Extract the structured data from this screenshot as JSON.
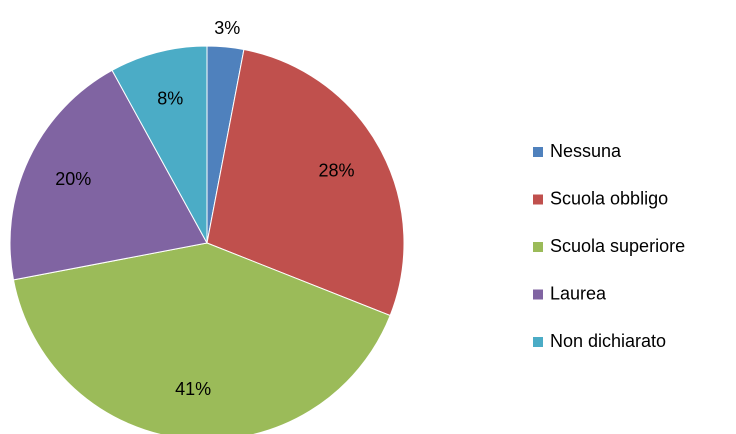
{
  "chart_data": {
    "type": "pie",
    "categories": [
      "Nessuna",
      "Scuola obbligo",
      "Scuola superiore",
      "Laurea",
      "Non dichiarato"
    ],
    "values": [
      3,
      28,
      41,
      20,
      8
    ],
    "value_labels": [
      "3%",
      "28%",
      "41%",
      "20%",
      "8%"
    ],
    "colors": [
      "#4f81bd",
      "#c0504d",
      "#9bbb59",
      "#8064a2",
      "#4bacc6"
    ],
    "legend": "right"
  }
}
